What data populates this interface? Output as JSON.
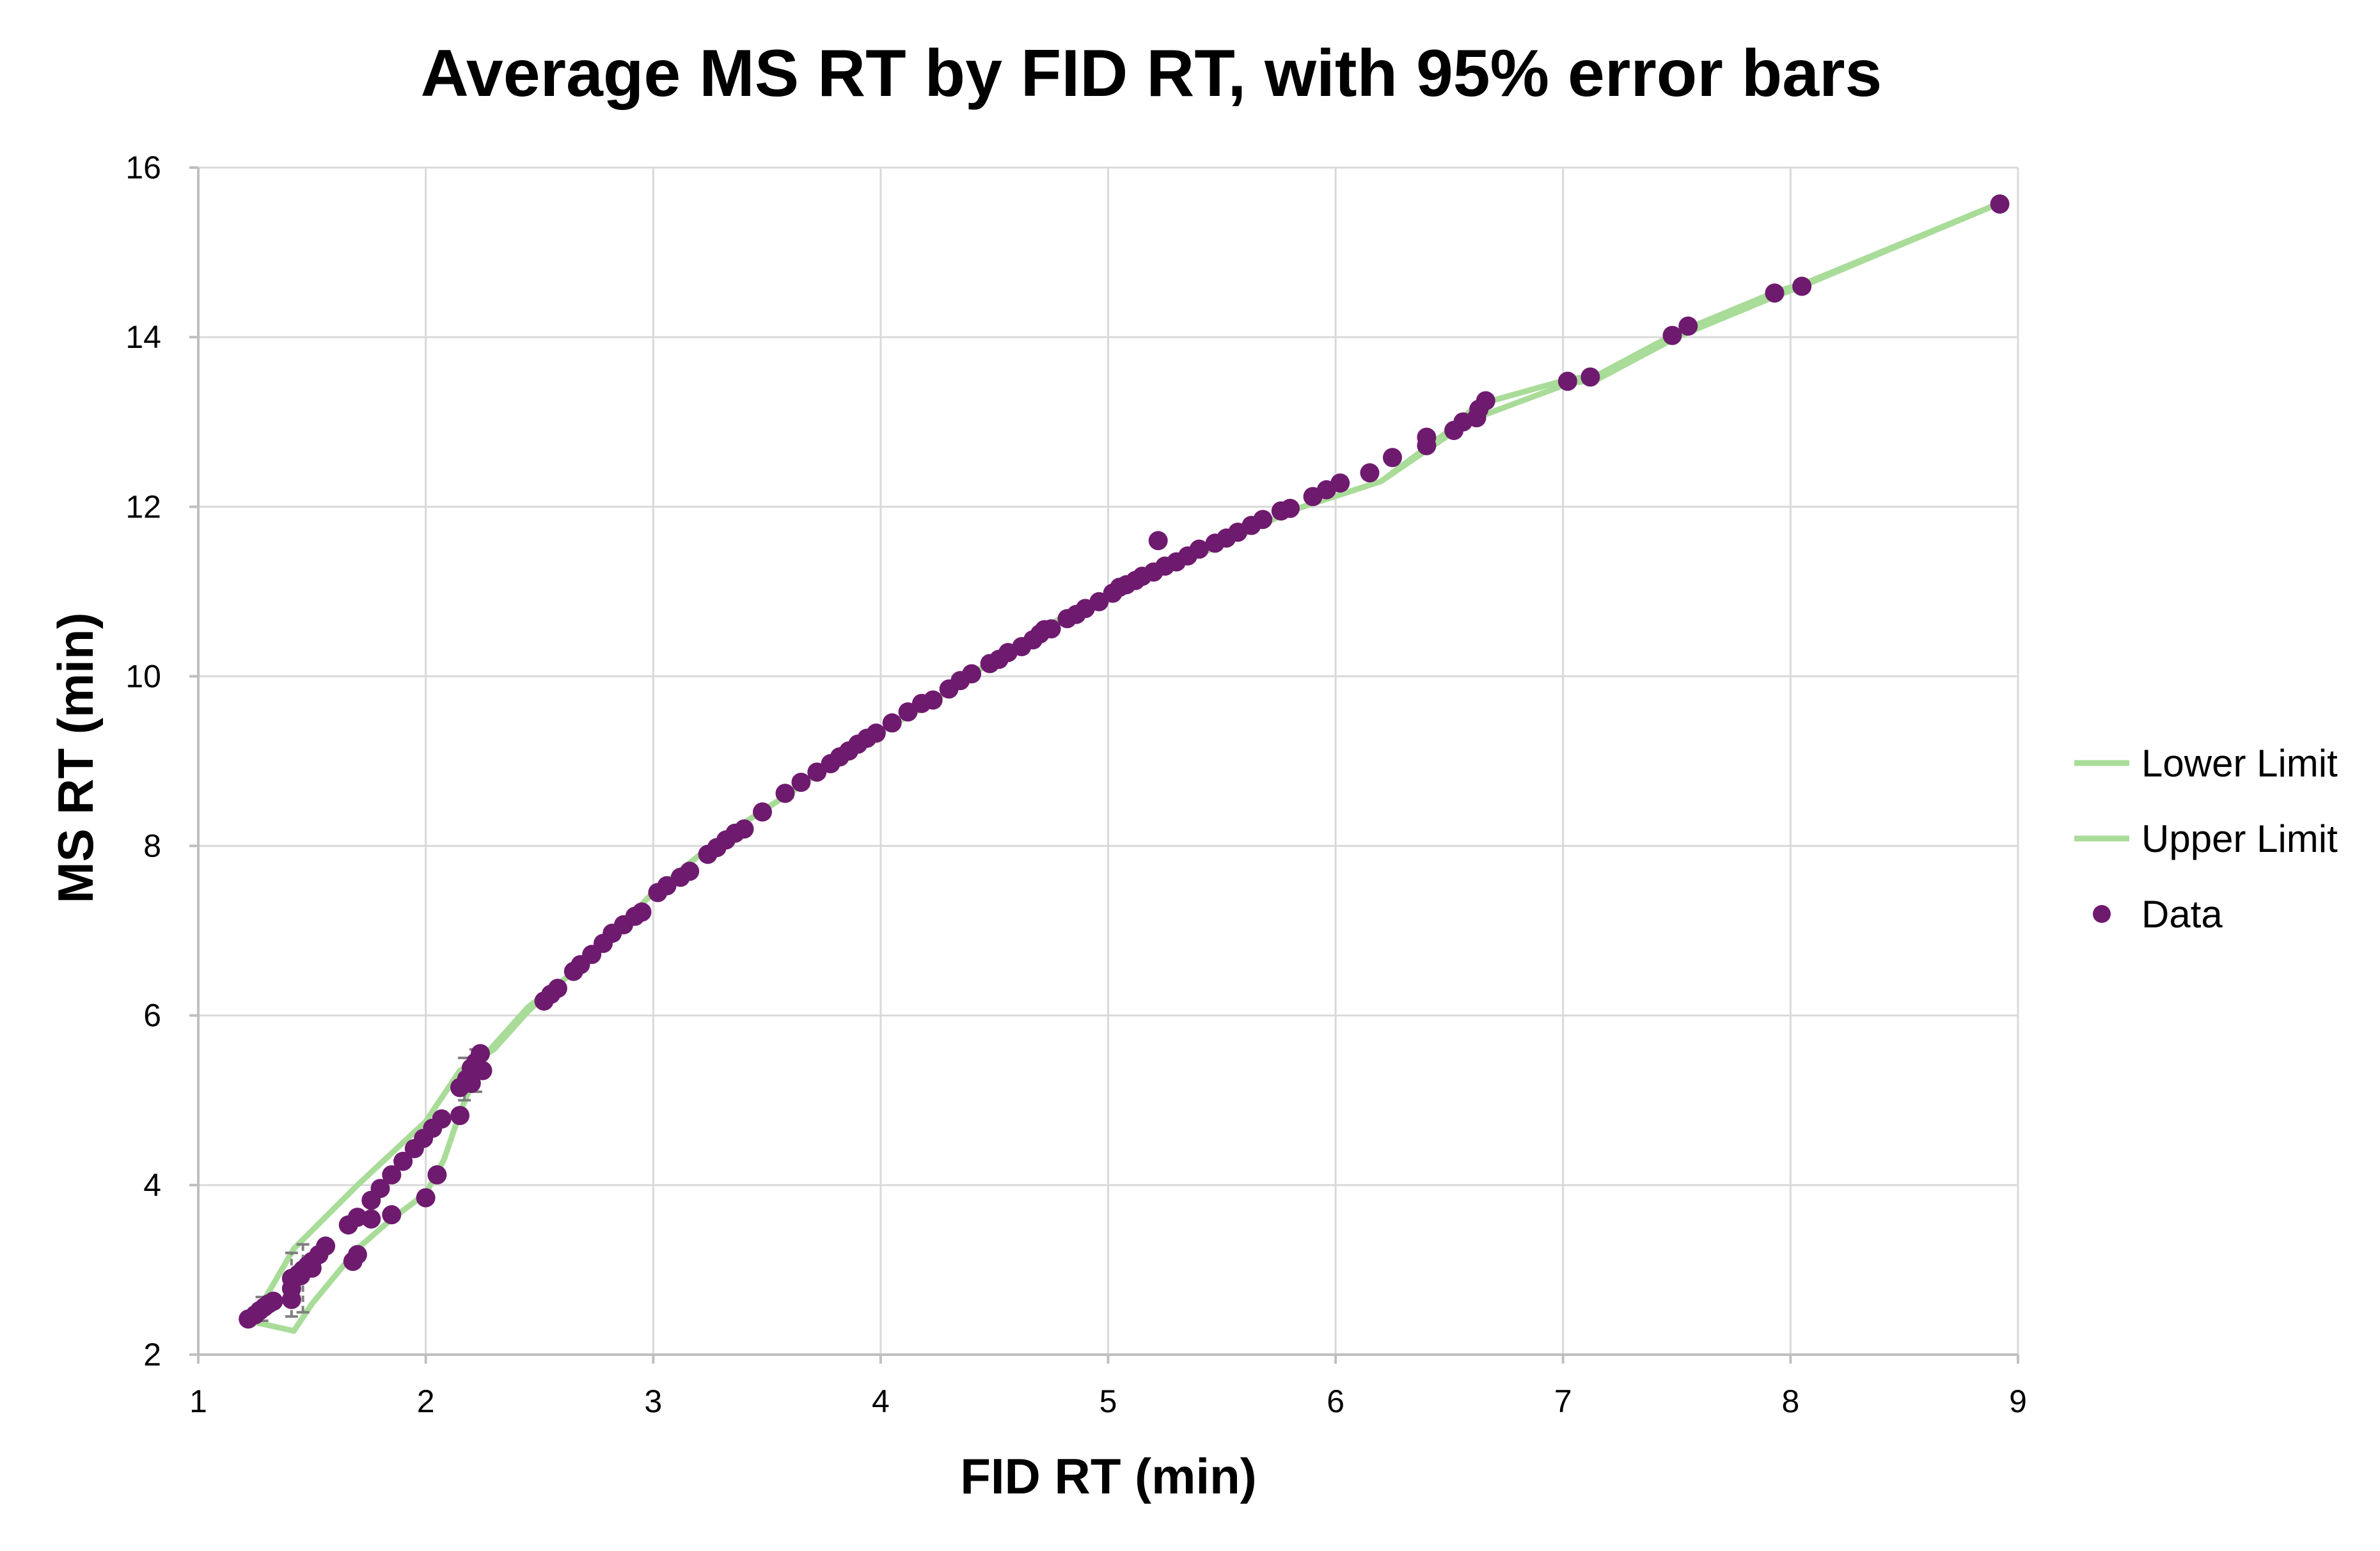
{
  "chart_data": {
    "type": "scatter",
    "title": "Average MS RT by FID RT, with 95% error bars",
    "xlabel": "FID RT (min)",
    "ylabel": "MS RT (min)",
    "xlim": [
      1,
      9
    ],
    "ylim": [
      2,
      16
    ],
    "xticks": [
      "1",
      "2",
      "3",
      "4",
      "5",
      "6",
      "7",
      "8",
      "9"
    ],
    "yticks": [
      "2",
      "4",
      "6",
      "8",
      "10",
      "12",
      "14",
      "16"
    ],
    "grid": true,
    "legend_position": "right",
    "colors": {
      "data": "#6e1a6e",
      "limits": "#a8dc98",
      "grid": "#d9d9d9",
      "axis": "#bfbfbf",
      "error_bars": "#7f7f7f"
    },
    "series": [
      {
        "name": "Lower Limit",
        "kind": "line",
        "x": [
          1.22,
          1.42,
          1.5,
          1.7,
          1.85,
          2.0,
          2.08,
          2.15,
          2.25,
          2.45,
          2.55,
          2.7,
          3.0,
          3.3,
          3.6,
          3.9,
          4.2,
          4.5,
          4.8,
          5.1,
          5.22,
          5.5,
          5.8,
          6.2,
          6.5,
          6.62,
          7.02,
          7.15,
          7.5,
          7.95,
          8.05,
          8.92
        ],
        "y": [
          2.4,
          2.28,
          2.6,
          3.25,
          3.6,
          3.9,
          4.3,
          4.85,
          5.5,
          6.1,
          6.3,
          6.62,
          7.45,
          8.1,
          8.62,
          9.2,
          9.65,
          10.2,
          10.7,
          11.05,
          11.25,
          11.55,
          11.95,
          12.3,
          12.85,
          13.05,
          13.45,
          13.5,
          14.0,
          14.5,
          14.6,
          15.58
        ]
      },
      {
        "name": "Upper Limit",
        "kind": "line",
        "x": [
          1.22,
          1.28,
          1.42,
          1.7,
          2.0,
          2.15,
          2.3,
          2.45,
          2.55,
          2.7,
          3.0,
          3.3,
          3.6,
          3.9,
          4.2,
          4.5,
          4.8,
          5.1,
          5.22,
          5.5,
          5.8,
          6.2,
          6.5,
          6.62,
          7.02,
          7.15,
          7.5,
          7.95,
          8.05,
          8.92
        ],
        "y": [
          2.4,
          2.6,
          3.25,
          4.0,
          4.75,
          5.35,
          5.6,
          6.05,
          6.3,
          6.62,
          7.45,
          8.1,
          8.62,
          9.2,
          9.65,
          10.2,
          10.7,
          11.05,
          11.25,
          11.55,
          11.95,
          12.3,
          12.9,
          13.2,
          13.5,
          13.55,
          14.05,
          14.55,
          14.62,
          15.58
        ]
      },
      {
        "name": "Data",
        "kind": "scatter",
        "points": [
          [
            1.22,
            2.42
          ],
          [
            1.25,
            2.47
          ],
          [
            1.27,
            2.52
          ],
          [
            1.29,
            2.56
          ],
          [
            1.31,
            2.6
          ],
          [
            1.33,
            2.63
          ],
          [
            1.41,
            2.65
          ],
          [
            1.41,
            2.78
          ],
          [
            1.41,
            2.9
          ],
          [
            1.44,
            2.95
          ],
          [
            1.46,
            3.0
          ],
          [
            1.48,
            3.05
          ],
          [
            1.5,
            3.1
          ],
          [
            1.53,
            3.18
          ],
          [
            1.56,
            3.28
          ],
          [
            1.5,
            3.02
          ],
          [
            1.45,
            2.93
          ],
          [
            1.66,
            3.53
          ],
          [
            1.7,
            3.62
          ],
          [
            1.76,
            3.82
          ],
          [
            1.8,
            3.96
          ],
          [
            1.85,
            4.12
          ],
          [
            1.9,
            4.28
          ],
          [
            1.95,
            4.43
          ],
          [
            1.99,
            4.55
          ],
          [
            2.03,
            4.67
          ],
          [
            2.07,
            4.78
          ],
          [
            1.68,
            3.1
          ],
          [
            1.7,
            3.18
          ],
          [
            1.76,
            3.6
          ],
          [
            1.85,
            3.65
          ],
          [
            2.0,
            3.85
          ],
          [
            2.05,
            4.12
          ],
          [
            2.15,
            4.82
          ],
          [
            2.15,
            5.15
          ],
          [
            2.18,
            5.25
          ],
          [
            2.2,
            5.38
          ],
          [
            2.22,
            5.45
          ],
          [
            2.24,
            5.55
          ],
          [
            2.25,
            5.35
          ],
          [
            2.2,
            5.2
          ],
          [
            2.52,
            6.17
          ],
          [
            2.55,
            6.25
          ],
          [
            2.58,
            6.32
          ],
          [
            2.65,
            6.52
          ],
          [
            2.68,
            6.6
          ],
          [
            2.73,
            6.72
          ],
          [
            2.78,
            6.85
          ],
          [
            2.82,
            6.97
          ],
          [
            2.87,
            7.07
          ],
          [
            2.92,
            7.17
          ],
          [
            2.95,
            7.22
          ],
          [
            3.02,
            7.45
          ],
          [
            3.06,
            7.53
          ],
          [
            3.12,
            7.63
          ],
          [
            3.16,
            7.7
          ],
          [
            3.24,
            7.9
          ],
          [
            3.28,
            7.98
          ],
          [
            3.32,
            8.07
          ],
          [
            3.36,
            8.15
          ],
          [
            3.4,
            8.2
          ],
          [
            3.48,
            8.4
          ],
          [
            3.58,
            8.62
          ],
          [
            3.65,
            8.75
          ],
          [
            3.72,
            8.87
          ],
          [
            3.78,
            8.97
          ],
          [
            3.82,
            9.05
          ],
          [
            3.86,
            9.12
          ],
          [
            3.9,
            9.2
          ],
          [
            3.94,
            9.27
          ],
          [
            3.98,
            9.33
          ],
          [
            4.05,
            9.45
          ],
          [
            4.12,
            9.58
          ],
          [
            4.18,
            9.68
          ],
          [
            4.23,
            9.72
          ],
          [
            4.3,
            9.85
          ],
          [
            4.35,
            9.95
          ],
          [
            4.4,
            10.03
          ],
          [
            4.48,
            10.15
          ],
          [
            4.52,
            10.2
          ],
          [
            4.56,
            10.28
          ],
          [
            4.62,
            10.35
          ],
          [
            4.67,
            10.43
          ],
          [
            4.7,
            10.5
          ],
          [
            4.72,
            10.55
          ],
          [
            4.75,
            10.56
          ],
          [
            4.82,
            10.68
          ],
          [
            4.86,
            10.73
          ],
          [
            4.9,
            10.8
          ],
          [
            4.96,
            10.88
          ],
          [
            5.02,
            10.98
          ],
          [
            5.05,
            11.05
          ],
          [
            5.08,
            11.08
          ],
          [
            5.12,
            11.13
          ],
          [
            5.15,
            11.18
          ],
          [
            5.2,
            11.23
          ],
          [
            5.22,
            11.6
          ],
          [
            5.25,
            11.3
          ],
          [
            5.3,
            11.35
          ],
          [
            5.35,
            11.42
          ],
          [
            5.4,
            11.5
          ],
          [
            5.47,
            11.57
          ],
          [
            5.52,
            11.63
          ],
          [
            5.57,
            11.7
          ],
          [
            5.63,
            11.78
          ],
          [
            5.68,
            11.85
          ],
          [
            5.76,
            11.95
          ],
          [
            5.8,
            11.98
          ],
          [
            5.9,
            12.12
          ],
          [
            5.96,
            12.2
          ],
          [
            6.02,
            12.28
          ],
          [
            6.15,
            12.4
          ],
          [
            6.25,
            12.58
          ],
          [
            6.4,
            12.72
          ],
          [
            6.4,
            12.82
          ],
          [
            6.52,
            12.9
          ],
          [
            6.56,
            13.0
          ],
          [
            6.62,
            13.05
          ],
          [
            6.63,
            13.15
          ],
          [
            6.66,
            13.25
          ],
          [
            7.02,
            13.48
          ],
          [
            7.12,
            13.53
          ],
          [
            7.48,
            14.02
          ],
          [
            7.55,
            14.13
          ],
          [
            7.93,
            14.52
          ],
          [
            8.05,
            14.6
          ],
          [
            8.92,
            15.57
          ]
        ]
      }
    ],
    "error_bars": [
      {
        "x": 1.28,
        "low": 2.4,
        "high": 2.68
      },
      {
        "x": 1.41,
        "low": 2.45,
        "high": 3.2
      },
      {
        "x": 1.46,
        "low": 2.5,
        "high": 3.3
      },
      {
        "x": 2.17,
        "low": 5.0,
        "high": 5.5
      },
      {
        "x": 2.22,
        "low": 5.1,
        "high": 5.6
      }
    ]
  }
}
